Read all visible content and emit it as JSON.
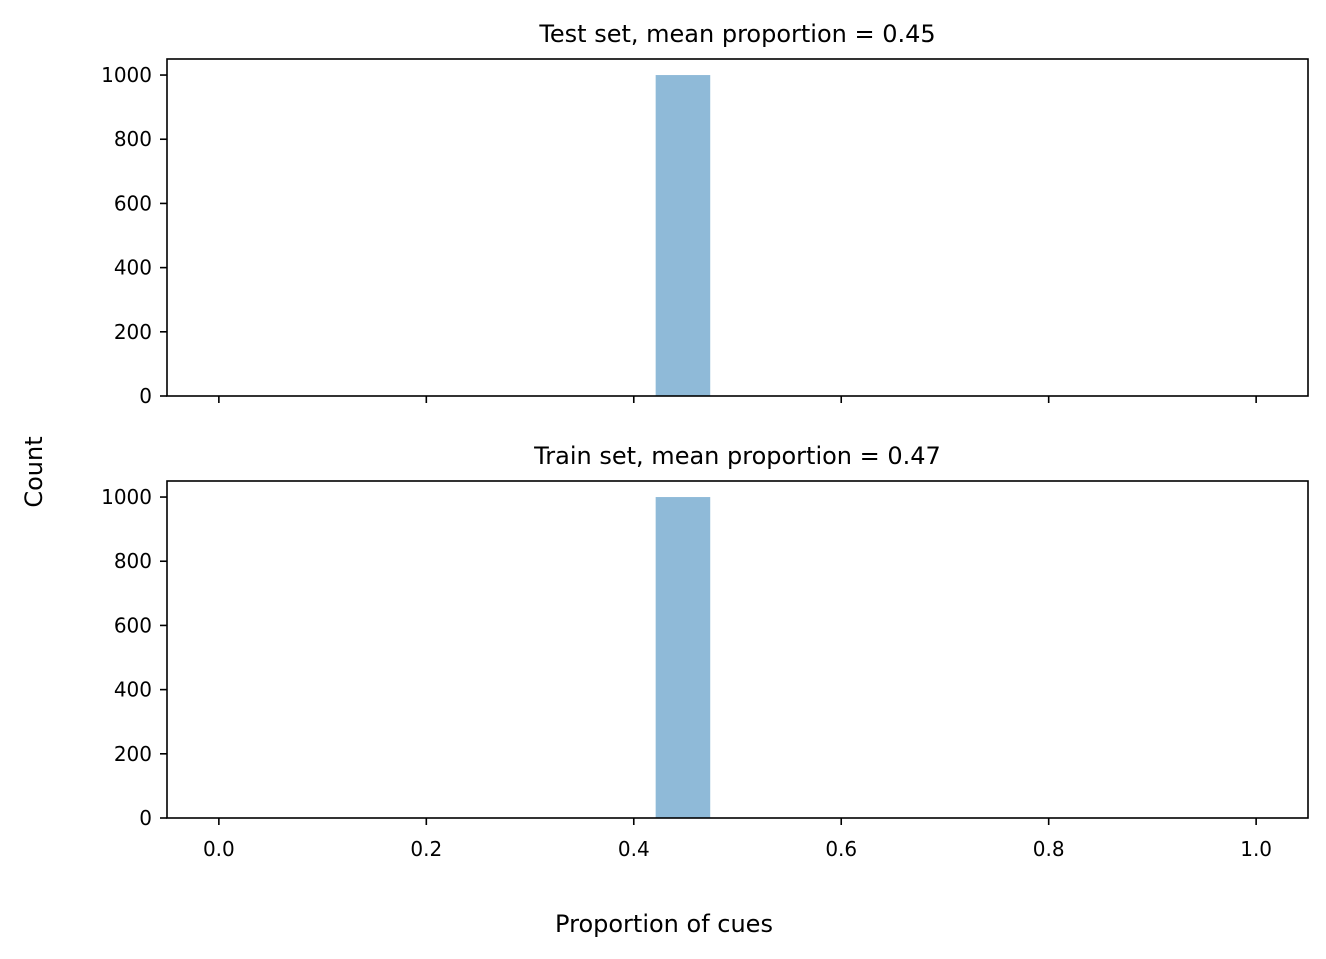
{
  "figure": {
    "ylabel": "Count",
    "xlabel": "Proportion of cues"
  },
  "chart_data": [
    {
      "type": "bar",
      "title": "Test set, mean proportion = 0.45",
      "xlim": [
        -0.05,
        1.05
      ],
      "ylim": [
        0,
        1050
      ],
      "xticks": [
        0.0,
        0.2,
        0.4,
        0.6,
        0.8,
        1.0
      ],
      "xtick_labels": [],
      "yticks": [
        0,
        200,
        400,
        600,
        800,
        1000
      ],
      "ytick_labels": [
        "0",
        "200",
        "400",
        "600",
        "800",
        "1000"
      ],
      "bins": [
        {
          "x0": 0.4211,
          "x1": 0.4737,
          "count": 1000
        }
      ],
      "bar_color": "#8fbad8",
      "grid": false
    },
    {
      "type": "bar",
      "title": "Train set, mean proportion = 0.47",
      "xlim": [
        -0.05,
        1.05
      ],
      "ylim": [
        0,
        1050
      ],
      "xticks": [
        0.0,
        0.2,
        0.4,
        0.6,
        0.8,
        1.0
      ],
      "xtick_labels": [
        "0.0",
        "0.2",
        "0.4",
        "0.6",
        "0.8",
        "1.0"
      ],
      "yticks": [
        0,
        200,
        400,
        600,
        800,
        1000
      ],
      "ytick_labels": [
        "0",
        "200",
        "400",
        "600",
        "800",
        "1000"
      ],
      "bins": [
        {
          "x0": 0.4211,
          "x1": 0.4737,
          "count": 1000
        }
      ],
      "bar_color": "#8fbad8",
      "grid": false
    }
  ]
}
